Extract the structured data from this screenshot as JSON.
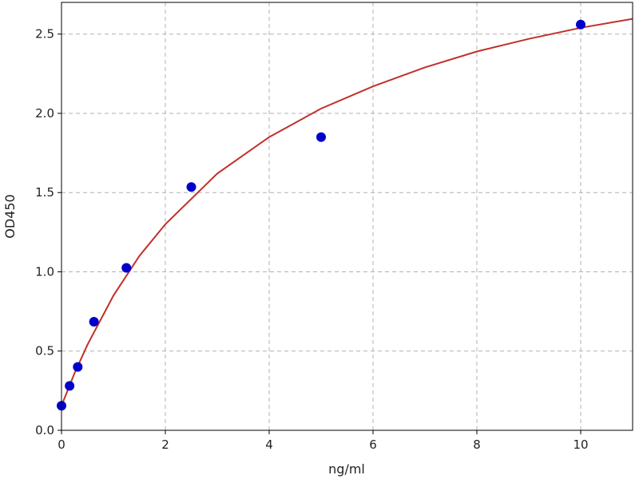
{
  "chart_data": {
    "type": "scatter",
    "title": "",
    "xlabel": "ng/ml",
    "ylabel": "OD450",
    "xlim": [
      0,
      11
    ],
    "ylim": [
      0,
      2.7
    ],
    "xticks": [
      0,
      2,
      4,
      6,
      8,
      10
    ],
    "yticks": [
      0.0,
      0.5,
      1.0,
      1.5,
      2.0,
      2.5
    ],
    "xtick_labels": [
      "0",
      "2",
      "4",
      "6",
      "8",
      "10"
    ],
    "ytick_labels": [
      "0.0",
      "0.5",
      "1.0",
      "1.5",
      "2.0",
      "2.5"
    ],
    "grid": true,
    "points": {
      "x": [
        0,
        0.156,
        0.3125,
        0.625,
        1.25,
        2.5,
        5,
        10
      ],
      "y": [
        0.155,
        0.28,
        0.4,
        0.685,
        1.025,
        1.535,
        1.85,
        2.56
      ],
      "color": "#0000cc"
    },
    "fit_curve": {
      "x": [
        0,
        0.25,
        0.5,
        1,
        1.5,
        2,
        3,
        4,
        5,
        6,
        7,
        8,
        9,
        10,
        11
      ],
      "y": [
        0.155,
        0.36,
        0.54,
        0.85,
        1.1,
        1.3,
        1.62,
        1.85,
        2.03,
        2.17,
        2.29,
        2.39,
        2.47,
        2.54,
        2.596
      ],
      "color": "#c0302a"
    }
  }
}
